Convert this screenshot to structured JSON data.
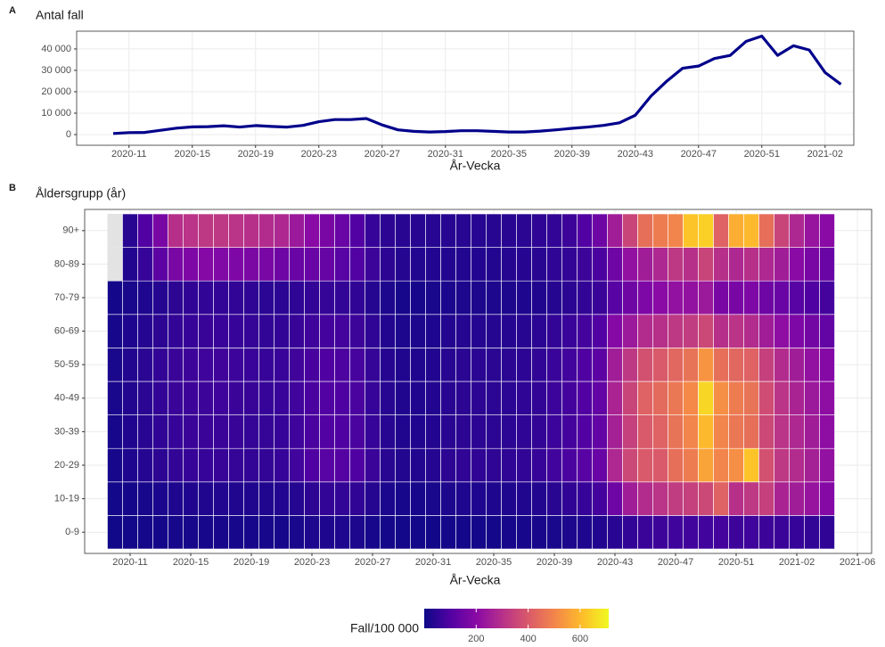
{
  "chart_data": [
    {
      "type": "line",
      "tag": "A",
      "title": "Antal fall",
      "xlabel": "År-Vecka",
      "color": "#00008b",
      "categories": [
        "2020-10",
        "2020-11",
        "2020-12",
        "2020-13",
        "2020-14",
        "2020-15",
        "2020-16",
        "2020-17",
        "2020-18",
        "2020-19",
        "2020-20",
        "2020-21",
        "2020-22",
        "2020-23",
        "2020-24",
        "2020-25",
        "2020-26",
        "2020-27",
        "2020-28",
        "2020-29",
        "2020-30",
        "2020-31",
        "2020-32",
        "2020-33",
        "2020-34",
        "2020-35",
        "2020-36",
        "2020-37",
        "2020-38",
        "2020-39",
        "2020-40",
        "2020-41",
        "2020-42",
        "2020-43",
        "2020-44",
        "2020-45",
        "2020-46",
        "2020-47",
        "2020-48",
        "2020-49",
        "2020-50",
        "2020-51",
        "2020-52",
        "2020-53",
        "2021-01",
        "2021-02",
        "2021-03"
      ],
      "values": [
        500,
        900,
        1000,
        2000,
        3000,
        3600,
        3700,
        4100,
        3500,
        4200,
        3800,
        3500,
        4300,
        6000,
        7000,
        7000,
        7500,
        4500,
        2200,
        1500,
        1200,
        1400,
        1800,
        1800,
        1500,
        1200,
        1200,
        1600,
        2200,
        2900,
        3500,
        4300,
        5500,
        9000,
        18000,
        25000,
        31000,
        32000,
        35500,
        37000,
        43500,
        46000,
        37000,
        41500,
        39500,
        29000,
        23500
      ],
      "xticks": [
        "2020-11",
        "2020-15",
        "2020-19",
        "2020-23",
        "2020-27",
        "2020-31",
        "2020-35",
        "2020-39",
        "2020-43",
        "2020-47",
        "2020-51",
        "2021-02"
      ],
      "ylim": [
        -5000,
        48300
      ],
      "yticks": [
        0,
        {
          "value": 10000,
          "label": "10 000"
        },
        {
          "value": 20000,
          "label": "20 000"
        },
        {
          "value": 30000,
          "label": "30 000"
        },
        {
          "value": 40000,
          "label": "40 000"
        }
      ],
      "grid": true
    },
    {
      "type": "heatmap",
      "tag": "B",
      "title": "Åldersgrupp (år)",
      "xlabel": "År-Vecka",
      "na_color": "#e3e3e3",
      "x": [
        "2020-10",
        "2020-11",
        "2020-12",
        "2020-13",
        "2020-14",
        "2020-15",
        "2020-16",
        "2020-17",
        "2020-18",
        "2020-19",
        "2020-20",
        "2020-21",
        "2020-22",
        "2020-23",
        "2020-24",
        "2020-25",
        "2020-26",
        "2020-27",
        "2020-28",
        "2020-29",
        "2020-30",
        "2020-31",
        "2020-32",
        "2020-33",
        "2020-34",
        "2020-35",
        "2020-36",
        "2020-37",
        "2020-38",
        "2020-39",
        "2020-40",
        "2020-41",
        "2020-42",
        "2020-43",
        "2020-44",
        "2020-45",
        "2020-46",
        "2020-47",
        "2020-48",
        "2020-49",
        "2020-50",
        "2020-51",
        "2020-52",
        "2020-53",
        "2021-01",
        "2021-02",
        "2021-03",
        "2021-04"
      ],
      "y": [
        "0-9",
        "10-19",
        "20-29",
        "30-39",
        "40-49",
        "50-59",
        "60-69",
        "70-79",
        "80-89",
        "90+"
      ],
      "values": [
        [
          5,
          8,
          10,
          12,
          14,
          15,
          15,
          16,
          15,
          14,
          14,
          15,
          18,
          22,
          25,
          24,
          22,
          15,
          10,
          8,
          8,
          9,
          10,
          11,
          12,
          12,
          13,
          14,
          16,
          18,
          22,
          26,
          30,
          40,
          55,
          65,
          70,
          72,
          75,
          75,
          80,
          70,
          72,
          70,
          65,
          60,
          55,
          50
        ],
        [
          8,
          12,
          15,
          20,
          25,
          28,
          28,
          30,
          28,
          28,
          27,
          30,
          35,
          45,
          55,
          55,
          50,
          35,
          20,
          15,
          15,
          18,
          22,
          25,
          25,
          24,
          25,
          28,
          32,
          40,
          50,
          60,
          80,
          150,
          250,
          290,
          310,
          330,
          340,
          360,
          420,
          300,
          320,
          340,
          270,
          250,
          230,
          190
        ],
        [
          15,
          25,
          35,
          45,
          55,
          60,
          60,
          62,
          58,
          55,
          55,
          60,
          75,
          95,
          110,
          105,
          95,
          65,
          40,
          30,
          30,
          35,
          45,
          50,
          50,
          48,
          48,
          52,
          60,
          75,
          90,
          110,
          140,
          280,
          360,
          400,
          400,
          450,
          480,
          560,
          500,
          520,
          620,
          380,
          320,
          290,
          260,
          220
        ],
        [
          15,
          28,
          40,
          50,
          60,
          65,
          65,
          66,
          62,
          58,
          56,
          60,
          72,
          88,
          100,
          95,
          88,
          60,
          38,
          28,
          28,
          32,
          40,
          45,
          45,
          44,
          44,
          48,
          55,
          68,
          80,
          100,
          130,
          260,
          340,
          400,
          420,
          460,
          500,
          600,
          500,
          470,
          450,
          360,
          310,
          280,
          250,
          210
        ],
        [
          18,
          30,
          42,
          55,
          65,
          70,
          70,
          72,
          66,
          62,
          60,
          64,
          76,
          90,
          100,
          96,
          88,
          60,
          38,
          28,
          28,
          32,
          40,
          45,
          45,
          44,
          44,
          48,
          55,
          68,
          80,
          100,
          130,
          270,
          350,
          420,
          440,
          470,
          510,
          650,
          520,
          480,
          460,
          370,
          310,
          270,
          240,
          210
        ],
        [
          18,
          30,
          42,
          55,
          65,
          70,
          72,
          74,
          68,
          64,
          60,
          64,
          74,
          86,
          95,
          92,
          84,
          58,
          36,
          27,
          27,
          30,
          38,
          42,
          42,
          42,
          42,
          46,
          52,
          64,
          76,
          95,
          120,
          250,
          320,
          380,
          400,
          430,
          460,
          530,
          450,
          430,
          420,
          340,
          290,
          250,
          220,
          190
        ],
        [
          15,
          25,
          35,
          45,
          55,
          60,
          62,
          64,
          60,
          56,
          52,
          54,
          62,
          72,
          80,
          78,
          70,
          48,
          30,
          22,
          22,
          25,
          30,
          35,
          35,
          35,
          35,
          38,
          44,
          54,
          64,
          80,
          100,
          190,
          240,
          290,
          300,
          320,
          330,
          360,
          300,
          310,
          290,
          250,
          210,
          180,
          160,
          130
        ],
        [
          10,
          18,
          25,
          35,
          45,
          50,
          52,
          54,
          52,
          48,
          44,
          44,
          48,
          54,
          58,
          55,
          50,
          35,
          22,
          15,
          15,
          17,
          20,
          22,
          22,
          22,
          22,
          24,
          28,
          35,
          42,
          55,
          65,
          110,
          150,
          180,
          200,
          220,
          220,
          240,
          170,
          170,
          180,
          150,
          140,
          110,
          95,
          80
        ],
        [
          null,
          30,
          60,
          120,
          170,
          180,
          190,
          185,
          180,
          175,
          170,
          150,
          140,
          140,
          135,
          110,
          100,
          70,
          45,
          35,
          32,
          32,
          32,
          32,
          32,
          32,
          34,
          36,
          40,
          48,
          55,
          70,
          90,
          150,
          220,
          250,
          280,
          320,
          300,
          350,
          300,
          280,
          300,
          280,
          250,
          200,
          170,
          140
        ],
        [
          null,
          40,
          100,
          170,
          300,
          310,
          320,
          320,
          310,
          300,
          290,
          280,
          240,
          200,
          170,
          140,
          100,
          60,
          45,
          40,
          38,
          38,
          38,
          38,
          38,
          38,
          40,
          42,
          48,
          55,
          70,
          100,
          150,
          250,
          350,
          450,
          480,
          500,
          620,
          640,
          420,
          580,
          600,
          450,
          350,
          280,
          230,
          200
        ]
      ],
      "xticks": [
        "2020-11",
        "2020-15",
        "2020-19",
        "2020-23",
        "2020-27",
        "2020-31",
        "2020-35",
        "2020-39",
        "2020-43",
        "2020-47",
        "2020-51",
        "2021-02",
        "2021-06"
      ],
      "colorbar": {
        "title": "Fall/100 000",
        "lim": [
          0,
          710
        ],
        "ticks": [
          200,
          400,
          600
        ]
      }
    }
  ]
}
